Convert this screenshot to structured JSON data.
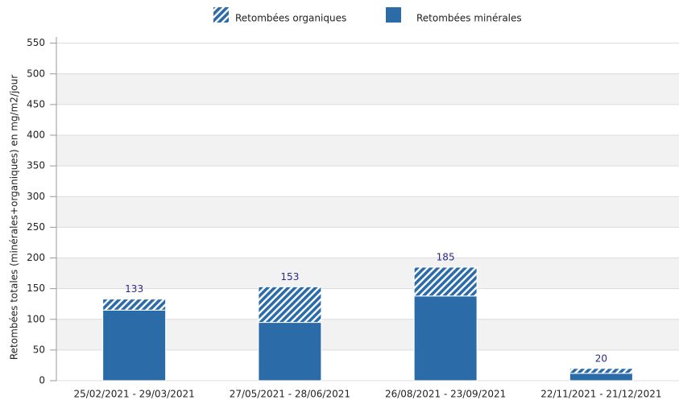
{
  "chart_data": {
    "type": "stacked_bar",
    "y_label": "Retombées totales (minérales+organiques) en mg/m2/jour",
    "categories": [
      "25/02/2021 - 29/03/2021",
      "27/05/2021 - 28/06/2021",
      "26/08/2021 - 23/09/2021",
      "22/11/2021 - 21/12/2021"
    ],
    "series": [
      {
        "name": "Retombées minérales",
        "color": "#2b6ca8",
        "values": [
          115,
          95,
          138,
          12
        ]
      },
      {
        "name": "Retombées organiques",
        "color": "#2b6ca8",
        "hatched": true,
        "values": [
          18,
          58,
          47,
          8
        ]
      }
    ],
    "totals": [
      133,
      153,
      185,
      20
    ],
    "ylim": [
      0,
      560
    ],
    "yticks": [
      0,
      50,
      100,
      150,
      200,
      250,
      300,
      350,
      400,
      450,
      500,
      550
    ],
    "grid": true
  }
}
